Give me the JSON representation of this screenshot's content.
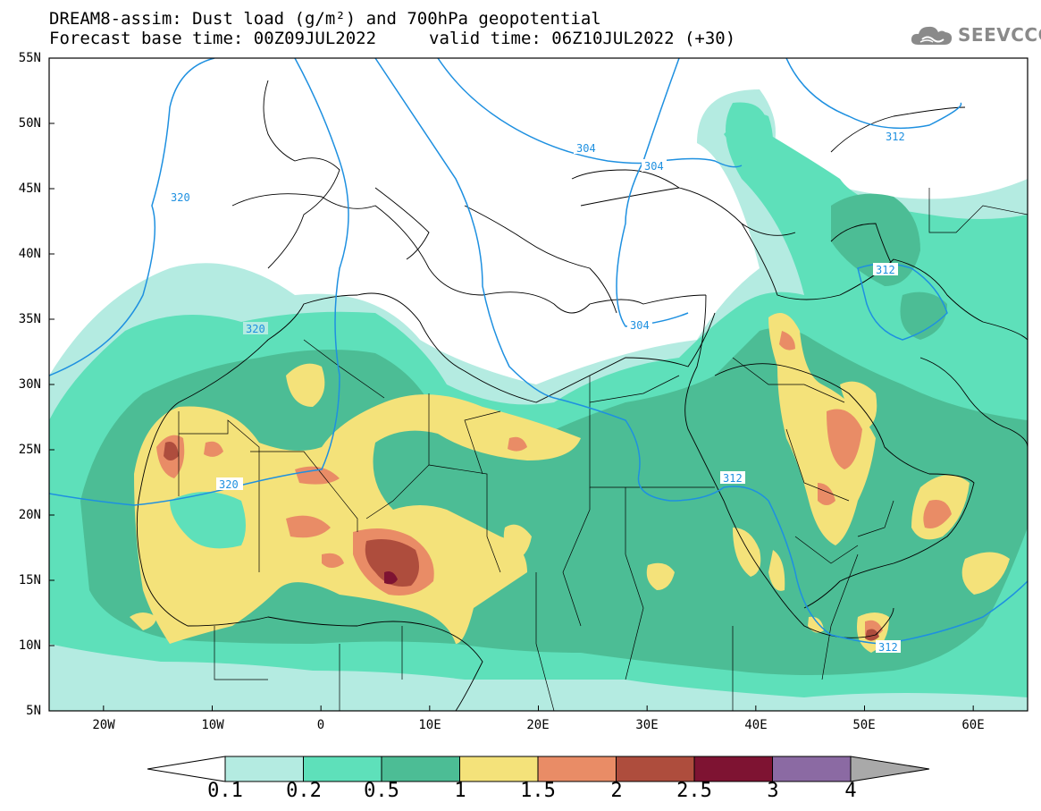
{
  "header": {
    "title": "DREAM8-assim: Dust load (g/m²) and 700hPa geopotential",
    "subtitle": "Forecast base time: 00Z09JUL2022",
    "valid_time": "valid time: 06Z10JUL2022 (+30)"
  },
  "logo": {
    "text": "SEEVCCC",
    "icon": "cloud-icon"
  },
  "map": {
    "lon_range": [
      -25,
      65
    ],
    "lat_range": [
      5,
      55
    ],
    "lat_ticks": [
      "55N",
      "50N",
      "45N",
      "40N",
      "35N",
      "30N",
      "25N",
      "20N",
      "15N",
      "10N",
      "5N"
    ],
    "lon_ticks": [
      "20W",
      "10W",
      "0",
      "10E",
      "20E",
      "30E",
      "40E",
      "50E",
      "60E"
    ],
    "contour_labels": [
      "320",
      "320",
      "320",
      "304",
      "304",
      "304",
      "312",
      "312",
      "312",
      "312"
    ]
  },
  "colorbar": {
    "labels": [
      "0.1",
      "0.2",
      "0.5",
      "1",
      "1.5",
      "2",
      "2.5",
      "3",
      "4"
    ],
    "colors": [
      "#b4ebe1",
      "#5ee0ba",
      "#4cbd95",
      "#f4e27a",
      "#e98c66",
      "#ae4d3d",
      "#7e1332",
      "#8b6aa3"
    ],
    "left_arrow_color": "#ffffff",
    "right_arrow_color": "#a9a9a9"
  }
}
